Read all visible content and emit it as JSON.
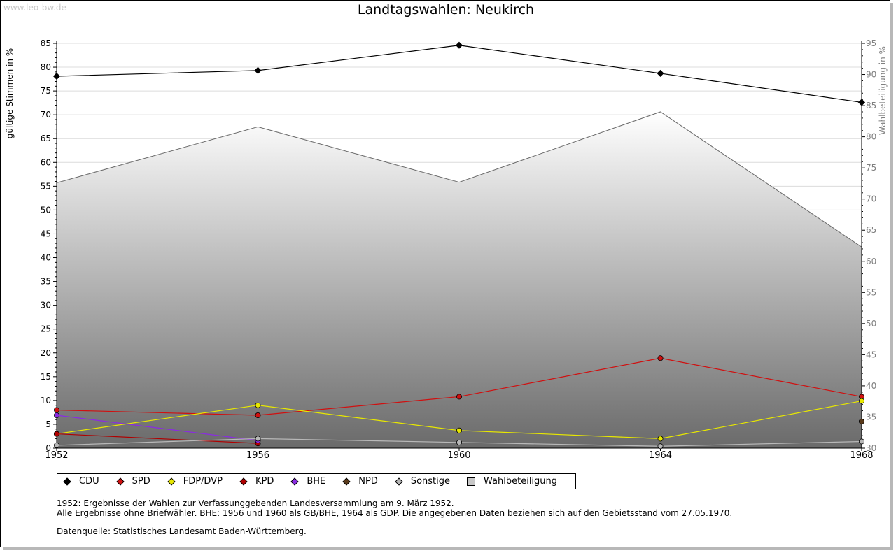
{
  "watermark": "www.leo-bw.de",
  "chart_data": {
    "type": "line",
    "title": "Landtagswahlen: Neukirch",
    "ylabel": "gültige Stimmen in %",
    "y2label": "Wahlbeteiligung in %",
    "x": [
      1952,
      1956,
      1960,
      1964,
      1968
    ],
    "ylim": [
      0,
      85
    ],
    "y2lim": [
      30,
      95
    ],
    "yticks": [
      0,
      5,
      10,
      15,
      20,
      25,
      30,
      35,
      40,
      45,
      50,
      55,
      60,
      65,
      70,
      75,
      80,
      85
    ],
    "y2ticks": [
      30,
      35,
      40,
      45,
      50,
      55,
      60,
      65,
      70,
      75,
      80,
      85,
      90,
      95
    ],
    "grid": true,
    "area_series": {
      "name": "Wahlbeteiligung",
      "axis": "right",
      "values": [
        72.6,
        81.6,
        72.7,
        84.0,
        62.3
      ]
    },
    "series": [
      {
        "name": "CDU",
        "color": "#000000",
        "shape": "diamond",
        "values": [
          78.1,
          79.3,
          84.6,
          78.7,
          72.6
        ]
      },
      {
        "name": "SPD",
        "color": "#d01010",
        "shape": "circle",
        "values": [
          8.0,
          6.9,
          10.8,
          18.9,
          10.8
        ]
      },
      {
        "name": "FDP/DVP",
        "color": "#e8e800",
        "shape": "circle",
        "values": [
          3.0,
          9.0,
          3.7,
          2.0,
          9.9
        ]
      },
      {
        "name": "KPD",
        "color": "#b00000",
        "shape": "circle",
        "values": [
          3.0,
          1.0,
          null,
          null,
          null
        ]
      },
      {
        "name": "BHE",
        "color": "#8a2be2",
        "shape": "circle",
        "values": [
          6.9,
          1.6,
          null,
          null,
          null
        ]
      },
      {
        "name": "NPD",
        "color": "#5a3a1a",
        "shape": "circle",
        "values": [
          null,
          null,
          null,
          null,
          5.6
        ]
      },
      {
        "name": "Sonstige",
        "color": "#b8b8b8",
        "shape": "circle",
        "values": [
          0.6,
          2.0,
          1.2,
          0.4,
          1.4
        ]
      }
    ]
  },
  "legend": [
    {
      "label": "CDU",
      "color": "#000000",
      "shape": "diamond"
    },
    {
      "label": "SPD",
      "color": "#d01010",
      "shape": "circle"
    },
    {
      "label": "FDP/DVP",
      "color": "#e8e800",
      "shape": "circle"
    },
    {
      "label": "KPD",
      "color": "#b00000",
      "shape": "circle"
    },
    {
      "label": "BHE",
      "color": "#8a2be2",
      "shape": "circle"
    },
    {
      "label": "NPD",
      "color": "#5a3a1a",
      "shape": "circle"
    },
    {
      "label": "Sonstige",
      "color": "#b8b8b8",
      "shape": "circle"
    },
    {
      "label": "Wahlbeteiligung",
      "color": "#c8c8c8",
      "shape": "square"
    }
  ],
  "notes": [
    "1952: Ergebnisse der Wahlen zur Verfassunggebenden Landesversammlung am 9. März 1952.",
    "Alle Ergebnisse ohne Briefwähler. BHE: 1956 und 1960 als GB/BHE, 1964 als GDP. Die angegebenen Daten beziehen sich auf den Gebietsstand vom 27.05.1970."
  ],
  "source": "Datenquelle: Statistisches Landesamt Baden-Württemberg."
}
